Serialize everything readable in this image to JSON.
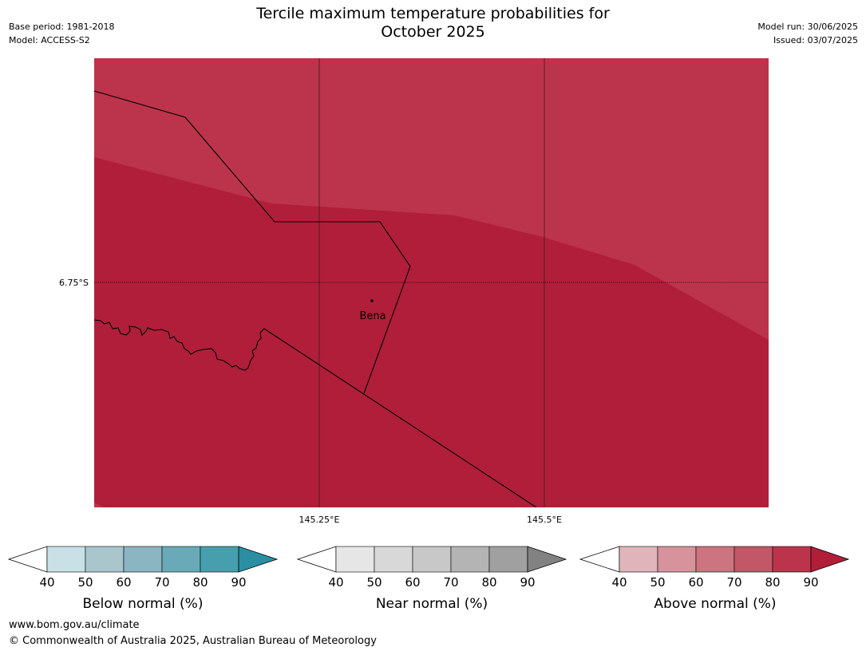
{
  "header": {
    "title_line1": "Tercile maximum temperature probabilities for",
    "title_line2": "October 2025",
    "base_period": "Base period: 1981-2018",
    "model": "Model: ACCESS-S2",
    "model_run": "Model run: 30/06/2025",
    "issued": "Issued: 03/07/2025"
  },
  "map": {
    "lat_label": "6.75°S",
    "lon_labels": [
      "145.25°E",
      "145.5°E"
    ],
    "place_label": "Bena",
    "colors": {
      "above_80_90": "#bc344b",
      "above_90_plus": "#b01e3a",
      "border": "#000000"
    }
  },
  "legends": [
    {
      "label": "Below normal (%)",
      "ticks": [
        "40",
        "50",
        "60",
        "70",
        "80",
        "90"
      ],
      "colors": [
        "#ffffff",
        "#c8e0e6",
        "#a8c6cc",
        "#8ab5c1",
        "#6aaab8",
        "#479fae",
        "#2a8fa2"
      ]
    },
    {
      "label": "Near normal (%)",
      "ticks": [
        "40",
        "50",
        "60",
        "70",
        "80",
        "90"
      ],
      "colors": [
        "#ffffff",
        "#e6e6e6",
        "#d8d8d8",
        "#c8c8c8",
        "#b4b4b4",
        "#a0a0a0",
        "#828282"
      ]
    },
    {
      "label": "Above normal (%)",
      "ticks": [
        "40",
        "50",
        "60",
        "70",
        "80",
        "90"
      ],
      "colors": [
        "#ffffff",
        "#e0b4ba",
        "#d6939c",
        "#cc7480",
        "#c25767",
        "#bc344b",
        "#b01e3a"
      ]
    }
  ],
  "footer": {
    "url": "www.bom.gov.au/climate",
    "copyright": "© Commonwealth of Australia 2025, Australian Bureau of Meteorology"
  }
}
